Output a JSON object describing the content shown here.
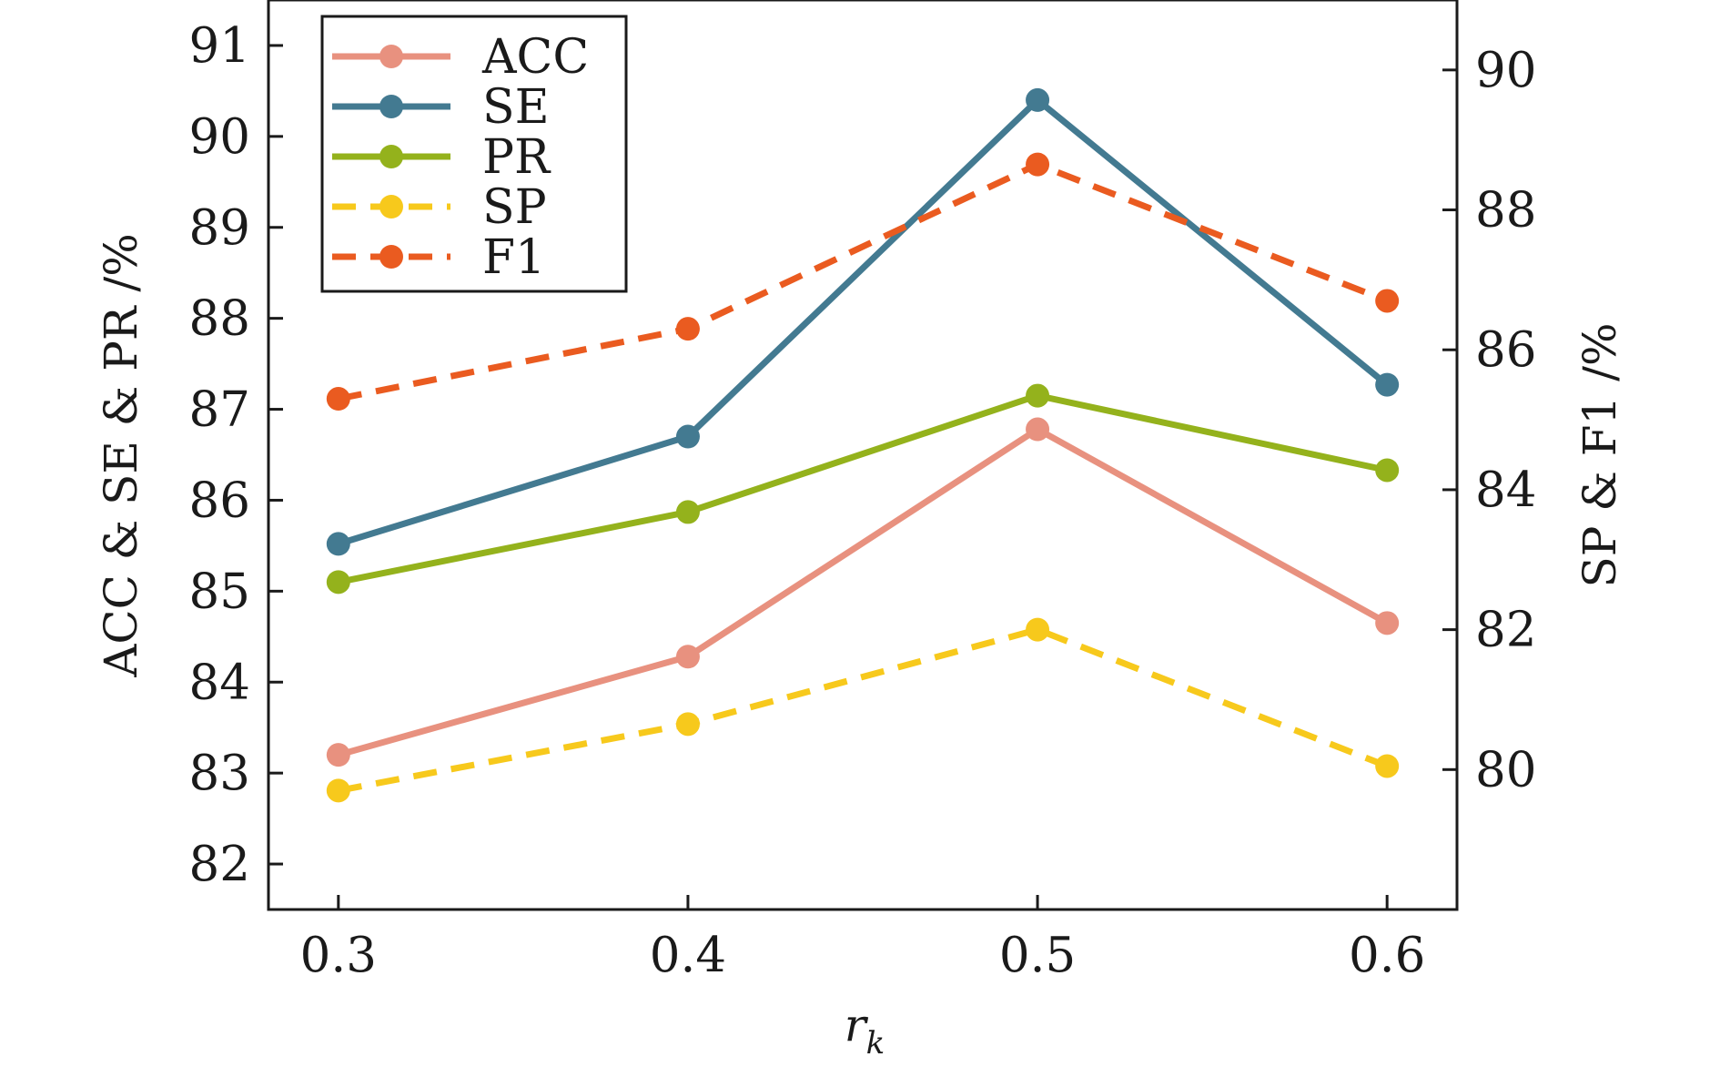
{
  "chart_data": {
    "type": "line",
    "x": [
      0.3,
      0.4,
      0.5,
      0.6
    ],
    "x_tick_labels": [
      "0.3",
      "0.4",
      "0.5",
      "0.6"
    ],
    "xlabel_main": "r",
    "xlabel_sub": "k",
    "xlim": [
      0.28,
      0.62
    ],
    "ylabel_left": "ACC & SE & PR /%",
    "ylabel_right": "SP & F1 /%",
    "ylim_left": [
      81.5,
      91.5
    ],
    "ylim_right": [
      78,
      91
    ],
    "y_ticks_left": [
      "82",
      "83",
      "84",
      "85",
      "86",
      "87",
      "88",
      "89",
      "90",
      "91"
    ],
    "y_ticks_right": [
      "80",
      "82",
      "84",
      "86",
      "88",
      "90"
    ],
    "grid": false,
    "legend_position": "top-left",
    "series": [
      {
        "name": "ACC",
        "axis": "left",
        "style": "solid",
        "color": "#e8917f",
        "values": [
          83.2,
          84.28,
          86.78,
          84.65
        ]
      },
      {
        "name": "SE",
        "axis": "left",
        "style": "solid",
        "color": "#437a91",
        "values": [
          85.52,
          86.7,
          90.4,
          87.27
        ]
      },
      {
        "name": "PR",
        "axis": "left",
        "style": "solid",
        "color": "#94b21c",
        "values": [
          85.1,
          85.87,
          87.15,
          86.33
        ]
      },
      {
        "name": "SP",
        "axis": "right",
        "style": "dashed",
        "color": "#f7c91c",
        "values": [
          79.7,
          80.65,
          82.0,
          80.05
        ]
      },
      {
        "name": "F1",
        "axis": "right",
        "style": "dashed",
        "color": "#ea5b20",
        "values": [
          85.3,
          86.3,
          88.65,
          86.7
        ]
      }
    ]
  }
}
